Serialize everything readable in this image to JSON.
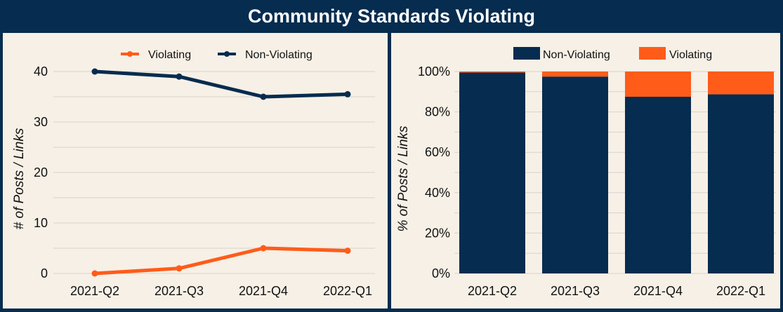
{
  "title": "Community Standards Violating",
  "colors": {
    "background": "#f7f0e6",
    "frame": "#062c4f",
    "non_violating": "#062c4f",
    "violating": "#ff5c1a",
    "grid": "#d6d3cf",
    "text": "#111111"
  },
  "chart_data": [
    {
      "type": "line",
      "title": "",
      "xlabel": "",
      "ylabel": "# of Posts / Links",
      "categories": [
        "2021-Q2",
        "2021-Q3",
        "2021-Q4",
        "2022-Q1"
      ],
      "ylim": [
        0,
        40
      ],
      "yticks": [
        0,
        10,
        20,
        30,
        40
      ],
      "ytick_labels": [
        "0",
        "10",
        "20",
        "30",
        "40"
      ],
      "grid": true,
      "legend": "top-center",
      "series": [
        {
          "name": "Violating",
          "color": "#ff5c1a",
          "values": [
            0,
            1,
            5,
            4.5
          ]
        },
        {
          "name": "Non-Violating",
          "color": "#062c4f",
          "values": [
            40,
            39,
            35,
            35.5
          ]
        }
      ]
    },
    {
      "type": "bar",
      "stacked": true,
      "title": "",
      "xlabel": "",
      "ylabel": "% of Posts / Links",
      "categories": [
        "2021-Q2",
        "2021-Q3",
        "2021-Q4",
        "2022-Q1"
      ],
      "ylim": [
        0,
        100
      ],
      "yticks": [
        0,
        20,
        40,
        60,
        80,
        100
      ],
      "ytick_labels": [
        "0%",
        "20%",
        "40%",
        "60%",
        "80%",
        "100%"
      ],
      "grid": true,
      "legend": "top-center",
      "series": [
        {
          "name": "Non-Violating",
          "color": "#062c4f",
          "values": [
            99.5,
            97.5,
            87.5,
            88.7
          ]
        },
        {
          "name": "Violating",
          "color": "#ff5c1a",
          "values": [
            0.5,
            2.5,
            12.5,
            11.3
          ]
        }
      ]
    }
  ]
}
